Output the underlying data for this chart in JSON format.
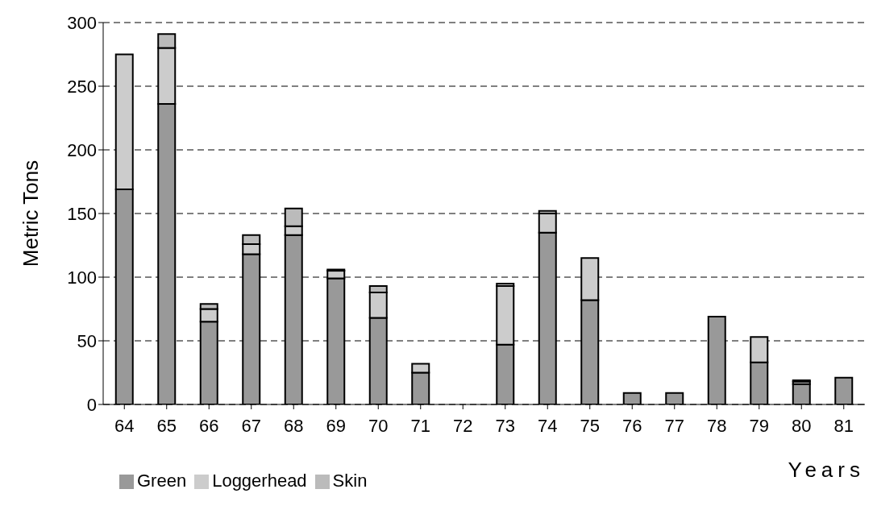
{
  "chart_data": {
    "type": "bar",
    "stacked": true,
    "xlabel": "Years",
    "ylabel": "Metric Tons",
    "categories": [
      "64",
      "65",
      "66",
      "67",
      "68",
      "69",
      "70",
      "71",
      "72",
      "73",
      "74",
      "75",
      "76",
      "77",
      "78",
      "79",
      "80",
      "81"
    ],
    "series": [
      {
        "name": "Green",
        "color": "#999999",
        "values": [
          169,
          236,
          65,
          118,
          133,
          99,
          68,
          25,
          0,
          47,
          135,
          82,
          9,
          9,
          69,
          33,
          16,
          21
        ]
      },
      {
        "name": "Loggerhead",
        "color": "#cccccc",
        "values": [
          106,
          44,
          10,
          8,
          7,
          6,
          20,
          7,
          0,
          46,
          15,
          33,
          0,
          0,
          0,
          20,
          2,
          0
        ]
      },
      {
        "name": "Skin",
        "color": "#bbbbbb",
        "values": [
          0,
          11,
          4,
          7,
          14,
          1,
          5,
          0,
          0,
          2,
          2,
          0,
          0,
          0,
          0,
          0,
          1,
          0
        ]
      }
    ],
    "ylim": [
      0,
      300
    ],
    "yticks": [
      0,
      50,
      100,
      150,
      200,
      250,
      300
    ],
    "grid": "y",
    "legend": "bottom left"
  }
}
